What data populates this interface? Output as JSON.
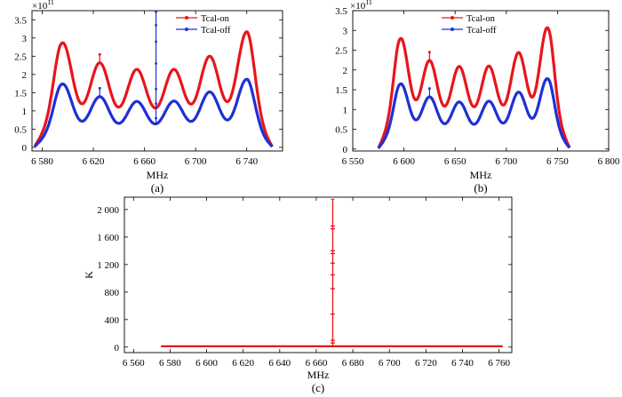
{
  "chart_data": [
    {
      "type": "line",
      "panel_label": "(a)",
      "xlabel": "MHz",
      "ylabel": "",
      "y_exponent": {
        "base": "×10",
        "power": "11"
      },
      "xlim": [
        6572,
        6768
      ],
      "ylim": [
        -0.1,
        3.75
      ],
      "xticks": [
        6580,
        6620,
        6660,
        6700,
        6740
      ],
      "xtick_labels": [
        "6 580",
        "6 620",
        "6 660",
        "6 700",
        "6 740"
      ],
      "yticks": [
        0,
        0.5,
        1,
        1.5,
        2,
        2.5,
        3,
        3.5
      ],
      "ytick_labels": [
        "0",
        "0.5",
        "1",
        "1.5",
        "2",
        "2.5",
        "3",
        "3.5"
      ],
      "legend": {
        "position": "top-right",
        "entries": [
          "Tcal-on",
          "Tcal-off"
        ]
      },
      "series": [
        {
          "name": "Tcal-on",
          "color": "#e8151b",
          "x_range": [
            6574,
            6760
          ],
          "floor": 0.68,
          "peaks": [
            [
              6596,
              2.85
            ],
            [
              6625,
              2.3
            ],
            [
              6654,
              2.12
            ],
            [
              6683,
              2.12
            ],
            [
              6711,
              2.48
            ],
            [
              6740,
              3.15
            ]
          ],
          "spikes": [
            [
              6625,
              2.55
            ]
          ]
        },
        {
          "name": "Tcal-off",
          "color": "#1f2fd6",
          "x_range": [
            6574,
            6760
          ],
          "floor": 0.4,
          "peaks": [
            [
              6596,
              1.72
            ],
            [
              6625,
              1.37
            ],
            [
              6654,
              1.24
            ],
            [
              6683,
              1.25
            ],
            [
              6711,
              1.5
            ],
            [
              6740,
              1.85
            ]
          ],
          "spikes": [
            [
              6625,
              1.62
            ],
            [
              6669,
              3.8
            ]
          ]
        }
      ]
    },
    {
      "type": "line",
      "panel_label": "(b)",
      "xlabel": "MHz",
      "ylabel": "",
      "y_exponent": {
        "base": "×10",
        "power": "11"
      },
      "xlim": [
        6550,
        6800
      ],
      "ylim": [
        -0.05,
        3.5
      ],
      "xticks": [
        6550,
        6600,
        6650,
        6700,
        6750,
        6800
      ],
      "xtick_labels": [
        "6 550",
        "6 600",
        "6 650",
        "6 700",
        "6 750",
        "6 800"
      ],
      "yticks": [
        0,
        0.5,
        1,
        1.5,
        2,
        2.5,
        3,
        3.5
      ],
      "ytick_labels": [
        "0",
        "0.5",
        "1",
        "1.5",
        "2",
        "2.5",
        "3",
        "3.5"
      ],
      "legend": {
        "position": "top-right",
        "entries": [
          "Tcal-on",
          "Tcal-off"
        ]
      },
      "series": [
        {
          "name": "Tcal-on",
          "color": "#e8151b",
          "x_range": [
            6575,
            6762
          ],
          "floor": 0.68,
          "peaks": [
            [
              6597,
              2.78
            ],
            [
              6625,
              2.22
            ],
            [
              6654,
              2.07
            ],
            [
              6683,
              2.08
            ],
            [
              6712,
              2.42
            ],
            [
              6740,
              3.05
            ]
          ],
          "spikes": [
            [
              6625,
              2.45
            ]
          ]
        },
        {
          "name": "Tcal-off",
          "color": "#1f2fd6",
          "x_range": [
            6575,
            6762
          ],
          "floor": 0.4,
          "peaks": [
            [
              6597,
              1.63
            ],
            [
              6625,
              1.3
            ],
            [
              6654,
              1.17
            ],
            [
              6683,
              1.19
            ],
            [
              6712,
              1.42
            ],
            [
              6740,
              1.76
            ]
          ],
          "spikes": [
            [
              6625,
              1.53
            ]
          ]
        }
      ]
    },
    {
      "type": "line",
      "panel_label": "(c)",
      "xlabel": "MHz",
      "ylabel": "K",
      "xlim": [
        6555,
        6767
      ],
      "ylim": [
        -80,
        2180
      ],
      "xticks": [
        6560,
        6580,
        6600,
        6620,
        6640,
        6660,
        6680,
        6700,
        6720,
        6740,
        6760
      ],
      "xtick_labels": [
        "6 560",
        "6 580",
        "6 600",
        "6 620",
        "6 640",
        "6 660",
        "6 680",
        "6 700",
        "6 720",
        "6 740",
        "6 760"
      ],
      "yticks": [
        0,
        400,
        800,
        1200,
        1600,
        2000
      ],
      "ytick_labels": [
        "0",
        "400",
        "800",
        "1 200",
        "1 600",
        "2 000"
      ],
      "series": [
        {
          "name": "K",
          "color": "#e8151b",
          "x_range": [
            6575,
            6762
          ],
          "baseline": 12,
          "spike": {
            "x": 6669,
            "top": 2150,
            "markers": [
              1760,
              1720,
              1400,
              1360,
              1220,
              1050,
              850,
              480,
              100,
              60
            ]
          }
        }
      ]
    }
  ]
}
